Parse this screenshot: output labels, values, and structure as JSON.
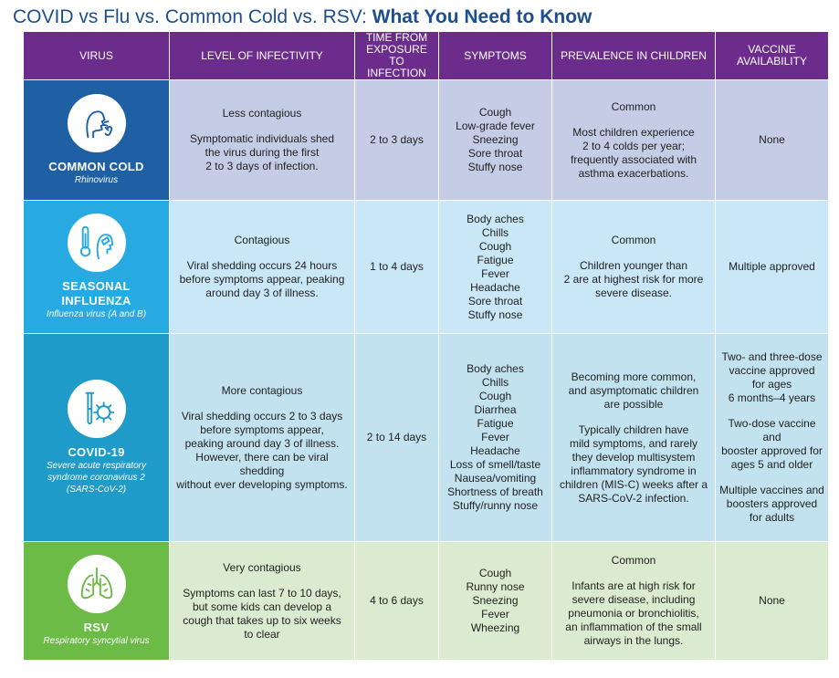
{
  "title": {
    "regular": "COVID vs Flu vs. Common Cold vs. RSV: ",
    "bold": "What You Need to Know"
  },
  "headers": {
    "virus": "VIRUS",
    "infectivity": "LEVEL OF INFECTIVITY",
    "time": [
      "TIME FROM",
      "EXPOSURE TO",
      "INFECTION"
    ],
    "symptoms": "SYMPTOMS",
    "prevalence": "PREVALENCE IN CHILDREN",
    "vaccine": [
      "VACCINE",
      "AVAILABILITY"
    ]
  },
  "rows": {
    "cold": {
      "name": "COMMON COLD",
      "sub": "Rhinovirus",
      "icon": "sneezing-person-icon",
      "infectivity_level": "Less contagious",
      "infectivity_detail": [
        "Symptomatic individuals shed",
        "the virus during the first",
        "2 to 3 days of infection."
      ],
      "time": "2 to 3 days",
      "symptoms": [
        "Cough",
        "Low-grade fever",
        "Sneezing",
        "Sore throat",
        "Stuffy nose"
      ],
      "prevalence_level": "Common",
      "prevalence_detail": [
        "Most children experience",
        "2 to 4 colds per year;",
        "frequently associated with",
        "asthma exacerbations."
      ],
      "vaccine": [
        "None"
      ]
    },
    "flu": {
      "name1": "SEASONAL",
      "name2": "INFLUENZA",
      "sub": "Influenza virus (A and B)",
      "icon": "thermometer-person-icon",
      "infectivity_level": "Contagious",
      "infectivity_detail": [
        "Viral shedding occurs 24 hours",
        "before symptoms appear, peaking",
        "around day 3 of illness."
      ],
      "time": "1 to 4 days",
      "symptoms": [
        "Body aches",
        "Chills",
        "Cough",
        "Fatigue",
        "Fever",
        "Headache",
        "Sore throat",
        "Stuffy nose"
      ],
      "prevalence_level": "Common",
      "prevalence_detail": [
        "Children younger than",
        "2 are at highest risk for more",
        "severe disease."
      ],
      "vaccine": [
        "Multiple approved"
      ]
    },
    "covid": {
      "name": "COVID-19",
      "sub": [
        "Severe acute respiratory",
        "syndrome coronavirus 2",
        "(SARS-CoV-2)"
      ],
      "icon": "test-tube-virus-icon",
      "infectivity_level": "More contagious",
      "infectivity_detail": [
        "Viral shedding occurs 2 to 3 days",
        "before symptoms appear,",
        "peaking around day 3 of illness.",
        "However, there can be viral shedding",
        "without ever developing symptoms."
      ],
      "time": "2 to 14 days",
      "symptoms": [
        "Body aches",
        "Chills",
        "Cough",
        "Diarrhea",
        "Fatigue",
        "Fever",
        "Headache",
        "Loss of smell/taste",
        "Nausea/vomiting",
        "Shortness of breath",
        "Stuffy/runny nose"
      ],
      "prevalence_p1": [
        "Becoming more common,",
        "and asymptomatic children",
        "are possible"
      ],
      "prevalence_p2": [
        "Typically children have",
        "mild symptoms, and rarely",
        "they develop multisystem",
        "inflammatory syndrome in",
        "children (MIS-C) weeks after a",
        "SARS-CoV-2 infection."
      ],
      "vaccine_p1": [
        "Two- and three-dose",
        "vaccine approved",
        "for ages",
        "6 months–4 years"
      ],
      "vaccine_p2": [
        "Two-dose vaccine and",
        "booster approved for",
        "ages 5 and older"
      ],
      "vaccine_p3": [
        "Multiple vaccines and",
        "boosters approved",
        "for adults"
      ]
    },
    "rsv": {
      "name": "RSV",
      "sub": "Respiratory syncytial virus",
      "icon": "lungs-icon",
      "infectivity_level": "Very contagious",
      "infectivity_detail": [
        "Symptoms can last 7 to 10 days,",
        "but some kids can develop a",
        "cough that takes up to six weeks",
        "to clear"
      ],
      "time": "4 to 6 days",
      "symptoms": [
        "Cough",
        "Runny nose",
        "Sneezing",
        "Fever",
        "Wheezing"
      ],
      "prevalence_level": "Common",
      "prevalence_detail": [
        "Infants are at high risk for",
        "severe disease, including",
        "pneumonia or bronchiolitis,",
        "an inflammation of the small",
        "airways in the lungs."
      ],
      "vaccine": [
        "None"
      ]
    }
  }
}
